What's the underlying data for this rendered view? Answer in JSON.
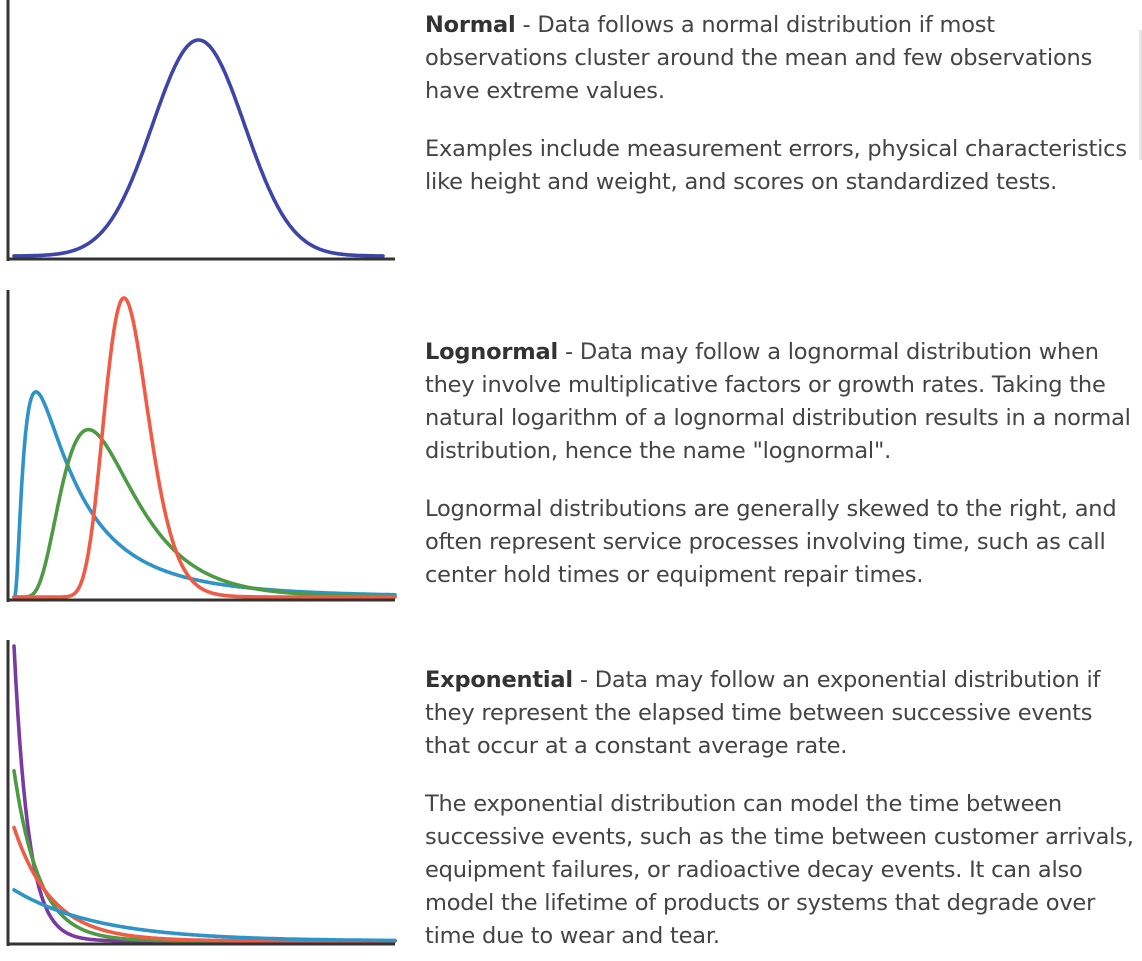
{
  "sections": [
    {
      "term": "Normal",
      "separator": " - ",
      "description": "Data follows a normal distribution if most observations cluster around the mean and few observations have extreme values.",
      "note": "Examples include measurement errors, physical characteristics like height and weight, and scores on standardized tests."
    },
    {
      "term": "Lognormal",
      "separator": " - ",
      "description": "Data may follow a lognormal distribution when they involve multiplicative factors or growth rates. Taking the natural logarithm of a lognormal distribution results in a normal distribution, hence the name \"lognormal\".",
      "note": "Lognormal distributions are generally skewed to the right, and often represent service processes involving time, such as call center hold times or equipment repair times."
    },
    {
      "term": "Exponential",
      "separator": " - ",
      "description": "Data may follow an exponential distribution if they represent the elapsed time between successive events that occur at a constant average rate.",
      "note": "The exponential distribution can model the time between successive events, such as the time between customer arrivals, equipment failures, or radioactive decay events. It can also model the lifetime of products or systems that degrade over time due to wear and tear."
    }
  ],
  "chart_data": [
    {
      "type": "line",
      "title": "",
      "xlabel": "",
      "ylabel": "",
      "grid": false,
      "xlim": [
        0,
        10
      ],
      "ylim": [
        0,
        1
      ],
      "series": [
        {
          "distribution": "normal",
          "mean": 5,
          "sd": 1.25,
          "color": "#3d45a8"
        }
      ]
    },
    {
      "type": "line",
      "title": "",
      "xlabel": "",
      "ylabel": "",
      "grid": false,
      "xlim": [
        0,
        10
      ],
      "ylim": [
        0,
        1
      ],
      "series": [
        {
          "distribution": "lognormal",
          "mu": 0.35,
          "sigma": 0.95,
          "color": "#2e93c8"
        },
        {
          "distribution": "lognormal",
          "mu": 0.9,
          "sigma": 0.48,
          "color": "#4e9a44"
        },
        {
          "distribution": "lognormal",
          "mu": 1.1,
          "sigma": 0.2,
          "color": "#f05b45"
        }
      ]
    },
    {
      "type": "line",
      "title": "",
      "xlabel": "",
      "ylabel": "",
      "grid": false,
      "xlim": [
        0,
        10
      ],
      "ylim": [
        0,
        1
      ],
      "series": [
        {
          "distribution": "exponential",
          "rate": 2.6,
          "color": "#7b3aa0"
        },
        {
          "distribution": "exponential",
          "rate": 1.5,
          "color": "#4e9a44"
        },
        {
          "distribution": "exponential",
          "rate": 1.0,
          "color": "#f05b45"
        },
        {
          "distribution": "exponential",
          "rate": 0.45,
          "color": "#2e93c8"
        }
      ]
    }
  ],
  "colors": {
    "axis": "#333333",
    "text": "#444444",
    "term": "#333333"
  }
}
